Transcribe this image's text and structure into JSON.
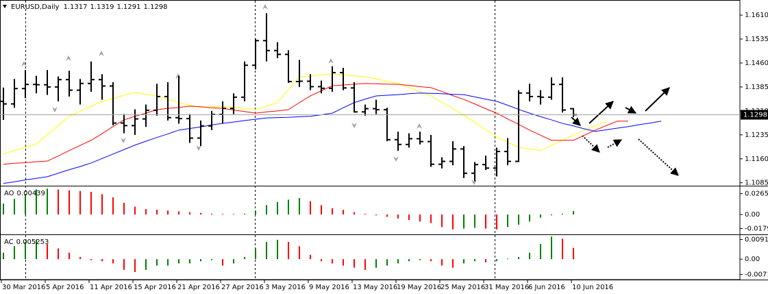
{
  "chart_data": [
    {
      "type": "ohlc",
      "title": "EURUSD,Daily",
      "color": "#000000",
      "categories": [
        "30 Mar 2016",
        null,
        null,
        null,
        "5 Apr 2016",
        null,
        null,
        null,
        "11 Apr 2016",
        null,
        null,
        null,
        "15 Apr 2016",
        null,
        null,
        null,
        "21 Apr 2016",
        null,
        null,
        null,
        "27 Apr 2016",
        null,
        null,
        null,
        "3 May 2016",
        null,
        null,
        null,
        "9 May 2016",
        null,
        null,
        null,
        "13 May 2016",
        null,
        null,
        null,
        "19 May 2016",
        null,
        null,
        null,
        "25 May 2016",
        null,
        null,
        null,
        "31 May 2016",
        null,
        null,
        null,
        "6 Jun 2016",
        null,
        null,
        null,
        "10 Jun 2016",
        null,
        null,
        null,
        null,
        null,
        null,
        null,
        null
      ],
      "open": [
        1.134,
        1.1332,
        1.138,
        1.1393,
        1.1392,
        1.1385,
        1.1408,
        1.1375,
        1.1396,
        1.1408,
        1.1388,
        1.1272,
        1.1264,
        1.1285,
        1.1312,
        1.1355,
        1.1289,
        1.1286,
        1.1225,
        1.1263,
        1.1299,
        1.1318,
        1.1353,
        1.1453,
        1.153,
        1.1499,
        1.1487,
        1.1402,
        1.1403,
        1.1386,
        1.1381,
        1.143,
        1.1382,
        1.1307,
        1.1317,
        1.1314,
        1.122,
        1.1205,
        1.1223,
        1.1214,
        1.1143,
        1.1152,
        1.1191,
        1.1115,
        1.1142,
        1.1131,
        1.1183,
        1.1152,
        1.1366,
        1.1355,
        1.1353,
        1.1393,
        1.1317,
        null,
        null,
        null,
        null,
        null,
        null,
        null,
        null
      ],
      "high": [
        1.1383,
        1.141,
        1.1438,
        1.142,
        1.1438,
        1.1418,
        1.1436,
        1.141,
        1.1465,
        1.1425,
        1.14,
        1.13,
        1.1315,
        1.133,
        1.1395,
        1.14,
        1.142,
        1.13,
        1.128,
        1.131,
        1.134,
        1.1365,
        1.1465,
        1.1535,
        1.1616,
        1.1525,
        1.15,
        1.147,
        1.1425,
        1.1405,
        1.145,
        1.1445,
        1.14,
        1.133,
        1.1345,
        1.132,
        1.1245,
        1.124,
        1.1245,
        1.1235,
        1.1165,
        1.1215,
        1.12,
        1.115,
        1.117,
        1.1195,
        1.1225,
        1.1375,
        1.1395,
        1.1375,
        1.1415,
        1.1415,
        1.1319,
        null,
        null,
        null,
        null,
        null,
        null,
        null,
        null
      ],
      "low": [
        1.1282,
        1.132,
        1.135,
        1.1365,
        1.136,
        1.134,
        1.1355,
        1.133,
        1.137,
        1.1345,
        1.1265,
        1.124,
        1.1235,
        1.126,
        1.1295,
        1.128,
        1.127,
        1.121,
        1.12,
        1.125,
        1.127,
        1.13,
        1.134,
        1.144,
        1.1465,
        1.1475,
        1.1398,
        1.1385,
        1.1375,
        1.1365,
        1.137,
        1.1375,
        1.1305,
        1.1295,
        1.13,
        1.1215,
        1.1185,
        1.1195,
        1.1205,
        1.1135,
        1.113,
        1.114,
        1.11,
        1.109,
        1.1125,
        1.1105,
        1.114,
        1.115,
        1.134,
        1.133,
        1.1345,
        1.1305,
        1.1291,
        null,
        null,
        null,
        null,
        null,
        null,
        null,
        null
      ],
      "close": [
        1.1332,
        1.138,
        1.1393,
        1.1392,
        1.1385,
        1.1408,
        1.1375,
        1.1396,
        1.1408,
        1.1388,
        1.1272,
        1.1264,
        1.1285,
        1.1312,
        1.1355,
        1.1289,
        1.1286,
        1.1225,
        1.1263,
        1.1299,
        1.1318,
        1.1353,
        1.1453,
        1.153,
        1.1499,
        1.1487,
        1.1402,
        1.1403,
        1.1386,
        1.1381,
        1.143,
        1.1382,
        1.1307,
        1.1317,
        1.1314,
        1.122,
        1.1205,
        1.1223,
        1.1214,
        1.1143,
        1.1152,
        1.1191,
        1.1115,
        1.1142,
        1.1131,
        1.1183,
        1.1152,
        1.1366,
        1.1355,
        1.1353,
        1.1393,
        1.1313,
        1.1298,
        null,
        null,
        null,
        null,
        null,
        null,
        null,
        null
      ],
      "lines": [
        {
          "color": "#ffff00",
          "values": [
            1.1175,
            1.1186,
            1.1196,
            1.1207,
            1.1235,
            1.1264,
            1.1293,
            1.1309,
            1.1325,
            1.134,
            1.1349,
            1.1359,
            1.1368,
            1.1362,
            1.1357,
            1.1346,
            1.1336,
            1.1328,
            1.1321,
            1.1323,
            1.1325,
            1.1321,
            1.1318,
            1.1314,
            1.1325,
            1.1336,
            1.1377,
            1.1417,
            1.142,
            1.1423,
            1.1426,
            1.1423,
            1.142,
            1.1417,
            1.141,
            1.1403,
            1.1396,
            1.1383,
            1.137,
            1.1357,
            1.1337,
            1.1317,
            1.1297,
            1.1274,
            1.1251,
            1.1228,
            1.1212,
            1.1196,
            1.1191,
            1.1186,
            1.1202,
            1.1218,
            1.1234,
            1.125,
            1.1263,
            1.1276,
            null,
            null,
            null,
            null,
            null
          ]
        },
        {
          "color": "#ff0000",
          "values": [
            1.1143,
            1.1146,
            1.1148,
            1.1151,
            1.1153,
            1.1169,
            1.1186,
            1.1202,
            1.1218,
            1.1239,
            1.1261,
            1.1282,
            1.1293,
            1.1303,
            1.1314,
            1.1318,
            1.1321,
            1.1325,
            1.1323,
            1.132,
            1.1318,
            1.1313,
            1.1308,
            1.1303,
            1.1307,
            1.131,
            1.1314,
            1.1336,
            1.1357,
            1.1373,
            1.1389,
            1.1391,
            1.1394,
            1.1396,
            1.1395,
            1.1394,
            1.1393,
            1.139,
            1.1386,
            1.1383,
            1.1371,
            1.1358,
            1.1346,
            1.1332,
            1.1317,
            1.1303,
            1.1285,
            1.1268,
            1.125,
            1.1234,
            1.1218,
            1.1218,
            1.1218,
            1.1234,
            1.125,
            1.1264,
            1.1278,
            1.1278,
            null,
            null,
            null
          ]
        },
        {
          "color": "#0000ff",
          "values": [
            1.1083,
            1.1088,
            1.1094,
            1.1099,
            1.1104,
            1.1115,
            1.1126,
            1.1136,
            1.1147,
            1.1161,
            1.1175,
            1.1189,
            1.1203,
            1.1215,
            1.1227,
            1.1238,
            1.125,
            1.1255,
            1.126,
            1.1266,
            1.1271,
            1.1275,
            1.128,
            1.1284,
            1.1288,
            1.1289,
            1.129,
            1.1292,
            1.1293,
            1.1298,
            1.1303,
            1.132,
            1.1336,
            1.1347,
            1.1357,
            1.1359,
            1.1361,
            1.1364,
            1.1366,
            1.1365,
            1.1364,
            1.1362,
            1.1361,
            1.1354,
            1.1347,
            1.134,
            1.1328,
            1.1315,
            1.1303,
            1.1292,
            1.1282,
            1.1271,
            1.1263,
            1.1254,
            1.1246,
            1.1251,
            1.1256,
            1.1261,
            1.1267,
            1.1272,
            1.1278
          ]
        }
      ],
      "ylim": [
        1.1078,
        1.1653
      ],
      "yticks": [
        {
          "value": 1.161,
          "label": "1.1610"
        },
        1.1535,
        {
          "value": 1.146,
          "label": "1.1460"
        },
        1.1385,
        {
          "value": 1.131,
          "label": "1.1310"
        },
        1.1235,
        {
          "value": 1.116,
          "label": "1.1160"
        },
        1.1085
      ]
    },
    {
      "type": "histogram",
      "title": "AO",
      "up_color": "#008000",
      "down_color": "#ff0000",
      "values": [
        0.014,
        0.02,
        0.026,
        0.032,
        0.033,
        0.032,
        0.031,
        0.03,
        0.029,
        0.026,
        0.022,
        0.015,
        0.01,
        0.007,
        0.006,
        0.005,
        0.004,
        0.003,
        0.002,
        0.001,
        0.0008,
        0.0007,
        0.001,
        0.005,
        0.012,
        0.016,
        0.019,
        0.021,
        0.017,
        0.012,
        0.008,
        0.006,
        0.003,
        0.001,
        -0.001,
        -0.003,
        -0.005,
        -0.007,
        -0.009,
        -0.011,
        -0.016,
        -0.019,
        -0.018,
        -0.017,
        -0.018,
        -0.019,
        -0.016,
        -0.013,
        -0.009,
        -0.004,
        -0.001,
        0.001,
        0.00439,
        null,
        null,
        null,
        null,
        null,
        null,
        null,
        null
      ],
      "ylim": [
        -0.0245,
        0.0359
      ],
      "yticks": [
        0.02655,
        {
          "value": 0,
          "label": "0.00"
        },
        -0.01794
      ]
    },
    {
      "type": "histogram",
      "title": "AC",
      "up_color": "#008000",
      "down_color": "#ff0000",
      "values": [
        0.003,
        0.006,
        0.008,
        0.009,
        0.007,
        0.005,
        0.003,
        0.001,
        -0.0005,
        -0.001,
        -0.002,
        -0.005,
        -0.006,
        -0.005,
        -0.003,
        -0.003,
        -0.002,
        -0.002,
        -0.001,
        -0.0005,
        -0.003,
        -0.002,
        0.001,
        0.005,
        0.008,
        0.009,
        0.008,
        0.006,
        0.002,
        -0.001,
        -0.002,
        -0.003,
        -0.004,
        -0.005,
        -0.004,
        -0.003,
        -0.002,
        -0.001,
        -0.0005,
        -0.001,
        -0.003,
        -0.004,
        -0.002,
        -0.001,
        -0.0015,
        -0.001,
        0.0003,
        0.001,
        0.003,
        0.007,
        0.0105,
        0.0095,
        0.005253,
        null,
        null,
        null,
        null,
        null,
        null,
        null,
        null
      ],
      "ylim": [
        -0.0092,
        0.0112
      ],
      "yticks": [
        0.00911,
        {
          "value": 0,
          "label": "0.00"
        },
        -0.00711
      ]
    }
  ]
}
